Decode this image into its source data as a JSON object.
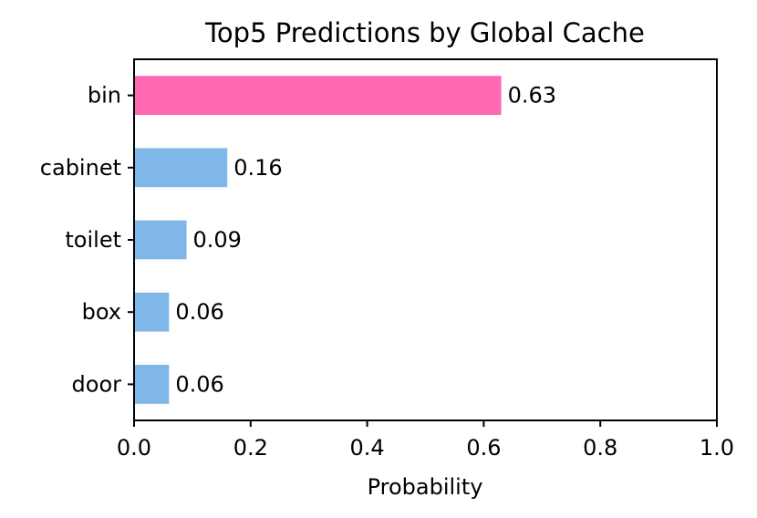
{
  "chart_data": {
    "type": "bar",
    "orientation": "horizontal",
    "title": "Top5 Predictions by Global Cache",
    "xlabel": "Probability",
    "ylabel": "",
    "xlim": [
      0,
      1
    ],
    "xticks": [
      "0.0",
      "0.2",
      "0.4",
      "0.6",
      "0.8",
      "1.0"
    ],
    "categories": [
      "bin",
      "cabinet",
      "toilet",
      "box",
      "door"
    ],
    "values": [
      0.63,
      0.16,
      0.09,
      0.06,
      0.06
    ],
    "value_labels": [
      "0.63",
      "0.16",
      "0.09",
      "0.06",
      "0.06"
    ],
    "bar_colors": [
      "#ff69b4",
      "#7fb8e8",
      "#7fb8e8",
      "#7fb8e8",
      "#7fb8e8"
    ],
    "grid": false,
    "legend": "none"
  }
}
